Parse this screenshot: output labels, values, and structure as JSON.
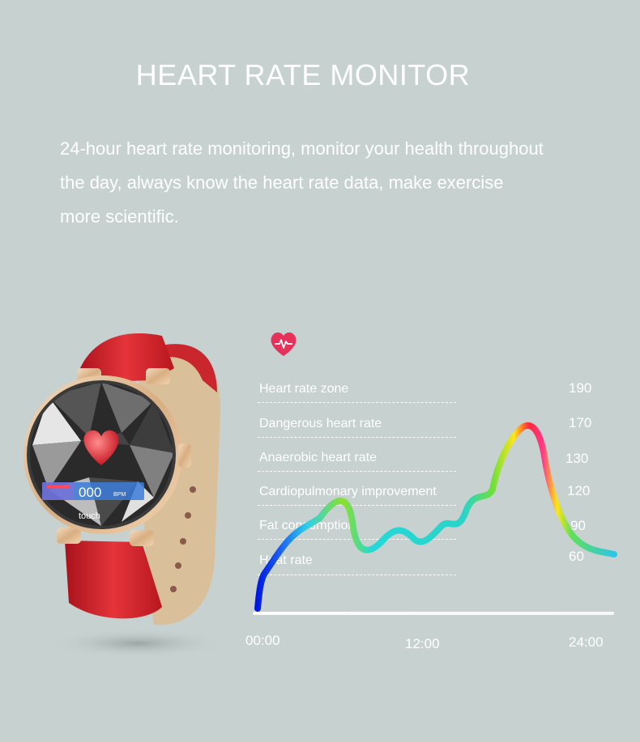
{
  "header": {
    "title": "HEART RATE MONITOR",
    "description_lines": [
      "24-hour heart rate monitoring, monitor your health throughout",
      "the day, always know the heart rate data, make exercise",
      "more scientific."
    ]
  },
  "watch": {
    "screen_value": "000",
    "screen_unit": "BPM",
    "screen_caption": "touch",
    "strap_color": "#d8262e",
    "case_color": "#e4c29a"
  },
  "heart_icon": "heart-pulse-icon",
  "zones": [
    {
      "label": "Heart rate zone",
      "value": "190"
    },
    {
      "label": "Dangerous heart rate",
      "value": "170"
    },
    {
      "label": "Anaerobic heart rate",
      "value": "130"
    },
    {
      "label": "Cardiopulmonary improvement",
      "value": "120"
    },
    {
      "label": "Fat consumption",
      "value": "90"
    },
    {
      "label": "Heat rate",
      "value": "60"
    }
  ],
  "time_axis": {
    "start": "00:00",
    "mid": "12:00",
    "end": "24:00"
  },
  "colors": {
    "background": "#c7d1d0",
    "heart_badge": "#e8315a",
    "curve_low": "#0019e0",
    "curve_mid": "#1fd7e0",
    "curve_green": "#7ee02a",
    "curve_yellow": "#ffe51a",
    "curve_red": "#ff2a3a"
  }
}
